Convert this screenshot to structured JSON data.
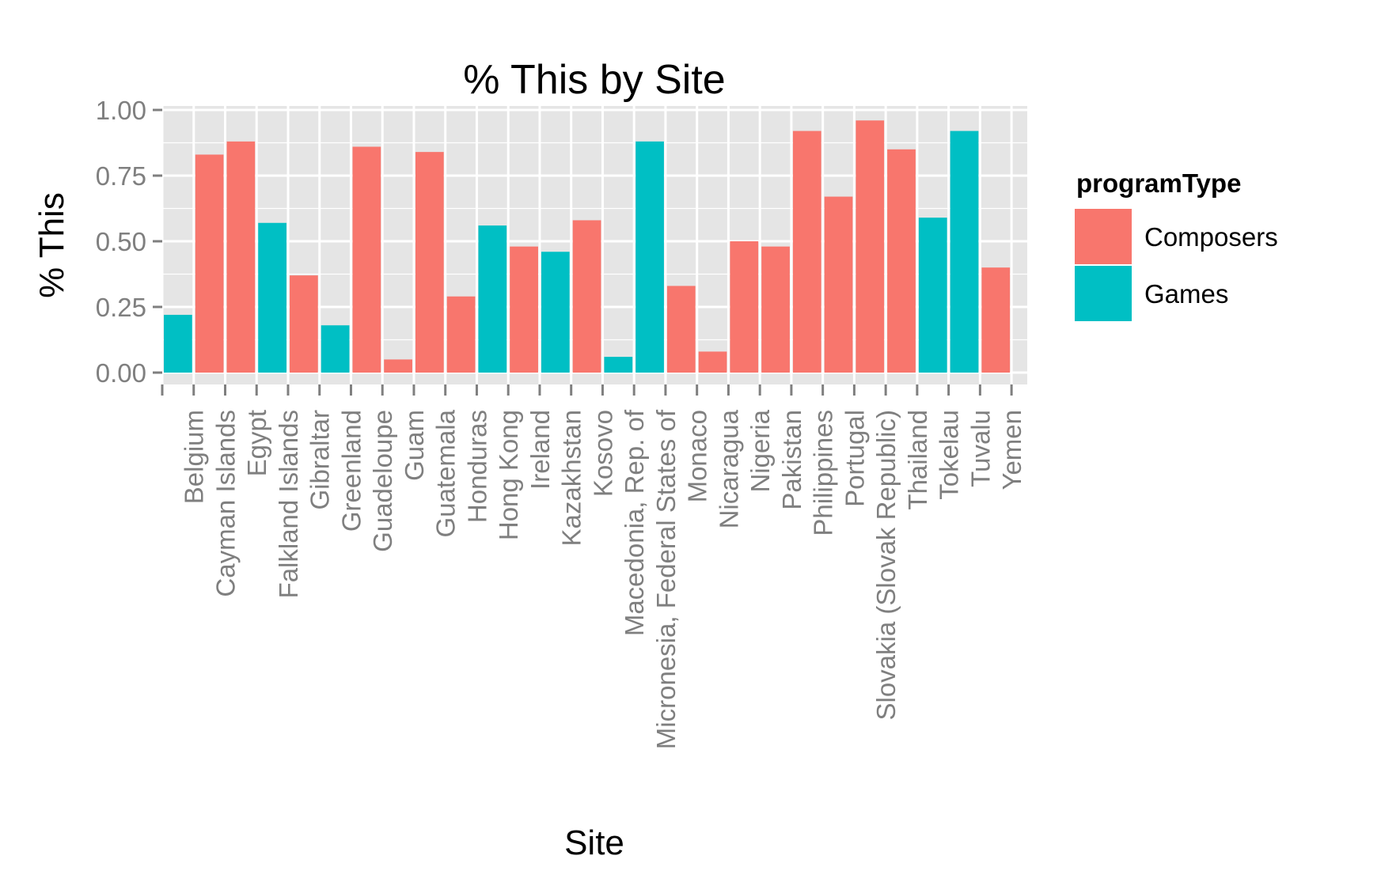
{
  "chart_data": {
    "type": "bar",
    "title": "% This by Site",
    "xlabel": "Site",
    "ylabel": "% This",
    "ylim": [
      0,
      1
    ],
    "yticks": [
      "0.00",
      "0.25",
      "0.50",
      "0.75",
      "1.00"
    ],
    "ytick_values": [
      0,
      0.25,
      0.5,
      0.75,
      1.0
    ],
    "grid": true,
    "legend": {
      "title": "programType",
      "position": "right",
      "entries": [
        {
          "label": "Composers",
          "color": "#F8766D"
        },
        {
          "label": "Games",
          "color": "#00BFC4"
        }
      ]
    },
    "categories": [
      "Belgium",
      "Cayman Islands",
      "Egypt",
      "Falkland Islands",
      "Gibraltar",
      "Greenland",
      "Guadeloupe",
      "Guam",
      "Guatemala",
      "Honduras",
      "Hong Kong",
      "Ireland",
      "Kazakhstan",
      "Kosovo",
      "Macedonia, Rep. of",
      "Micronesia, Federal States of",
      "Monaco",
      "Nicaragua",
      "Nigeria",
      "Pakistan",
      "Philippines",
      "Portugal",
      "Slovakia (Slovak Republic)",
      "Thailand",
      "Tokelau",
      "Tuvalu",
      "Yemen"
    ],
    "bars": [
      {
        "x": 0.5,
        "value": 0.22,
        "programType": "Games"
      },
      {
        "x": 1.5,
        "value": 0.83,
        "programType": "Composers"
      },
      {
        "x": 2.5,
        "value": 0.88,
        "programType": "Composers"
      },
      {
        "x": 3.5,
        "value": 0.57,
        "programType": "Games"
      },
      {
        "x": 4.5,
        "value": 0.37,
        "programType": "Composers"
      },
      {
        "x": 5.5,
        "value": 0.18,
        "programType": "Games"
      },
      {
        "x": 6.5,
        "value": 0.86,
        "programType": "Composers"
      },
      {
        "x": 7.5,
        "value": 0.05,
        "programType": "Composers"
      },
      {
        "x": 8.5,
        "value": 0.84,
        "programType": "Composers"
      },
      {
        "x": 9.5,
        "value": 0.29,
        "programType": "Composers"
      },
      {
        "x": 10.5,
        "value": 0.56,
        "programType": "Games"
      },
      {
        "x": 11.5,
        "value": 0.48,
        "programType": "Composers"
      },
      {
        "x": 12.5,
        "value": 0.46,
        "programType": "Games"
      },
      {
        "x": 13.5,
        "value": 0.58,
        "programType": "Composers"
      },
      {
        "x": 14.5,
        "value": 0.06,
        "programType": "Games"
      },
      {
        "x": 15.5,
        "value": 0.88,
        "programType": "Games"
      },
      {
        "x": 16.5,
        "value": 0.33,
        "programType": "Composers"
      },
      {
        "x": 17.5,
        "value": 0.08,
        "programType": "Composers"
      },
      {
        "x": 18.5,
        "value": 0.5,
        "programType": "Composers"
      },
      {
        "x": 19.5,
        "value": 0.48,
        "programType": "Composers"
      },
      {
        "x": 20.5,
        "value": 0.92,
        "programType": "Composers"
      },
      {
        "x": 21.5,
        "value": 0.67,
        "programType": "Composers"
      },
      {
        "x": 22.5,
        "value": 0.96,
        "programType": "Composers"
      },
      {
        "x": 23.5,
        "value": 0.85,
        "programType": "Composers"
      },
      {
        "x": 24.5,
        "value": 0.59,
        "programType": "Games"
      },
      {
        "x": 25.5,
        "value": 0.92,
        "programType": "Games"
      },
      {
        "x": 26.5,
        "value": 0.4,
        "programType": "Composers"
      }
    ],
    "panel_color": "#E5E5E5",
    "grid_color": "#FFFFFF"
  }
}
